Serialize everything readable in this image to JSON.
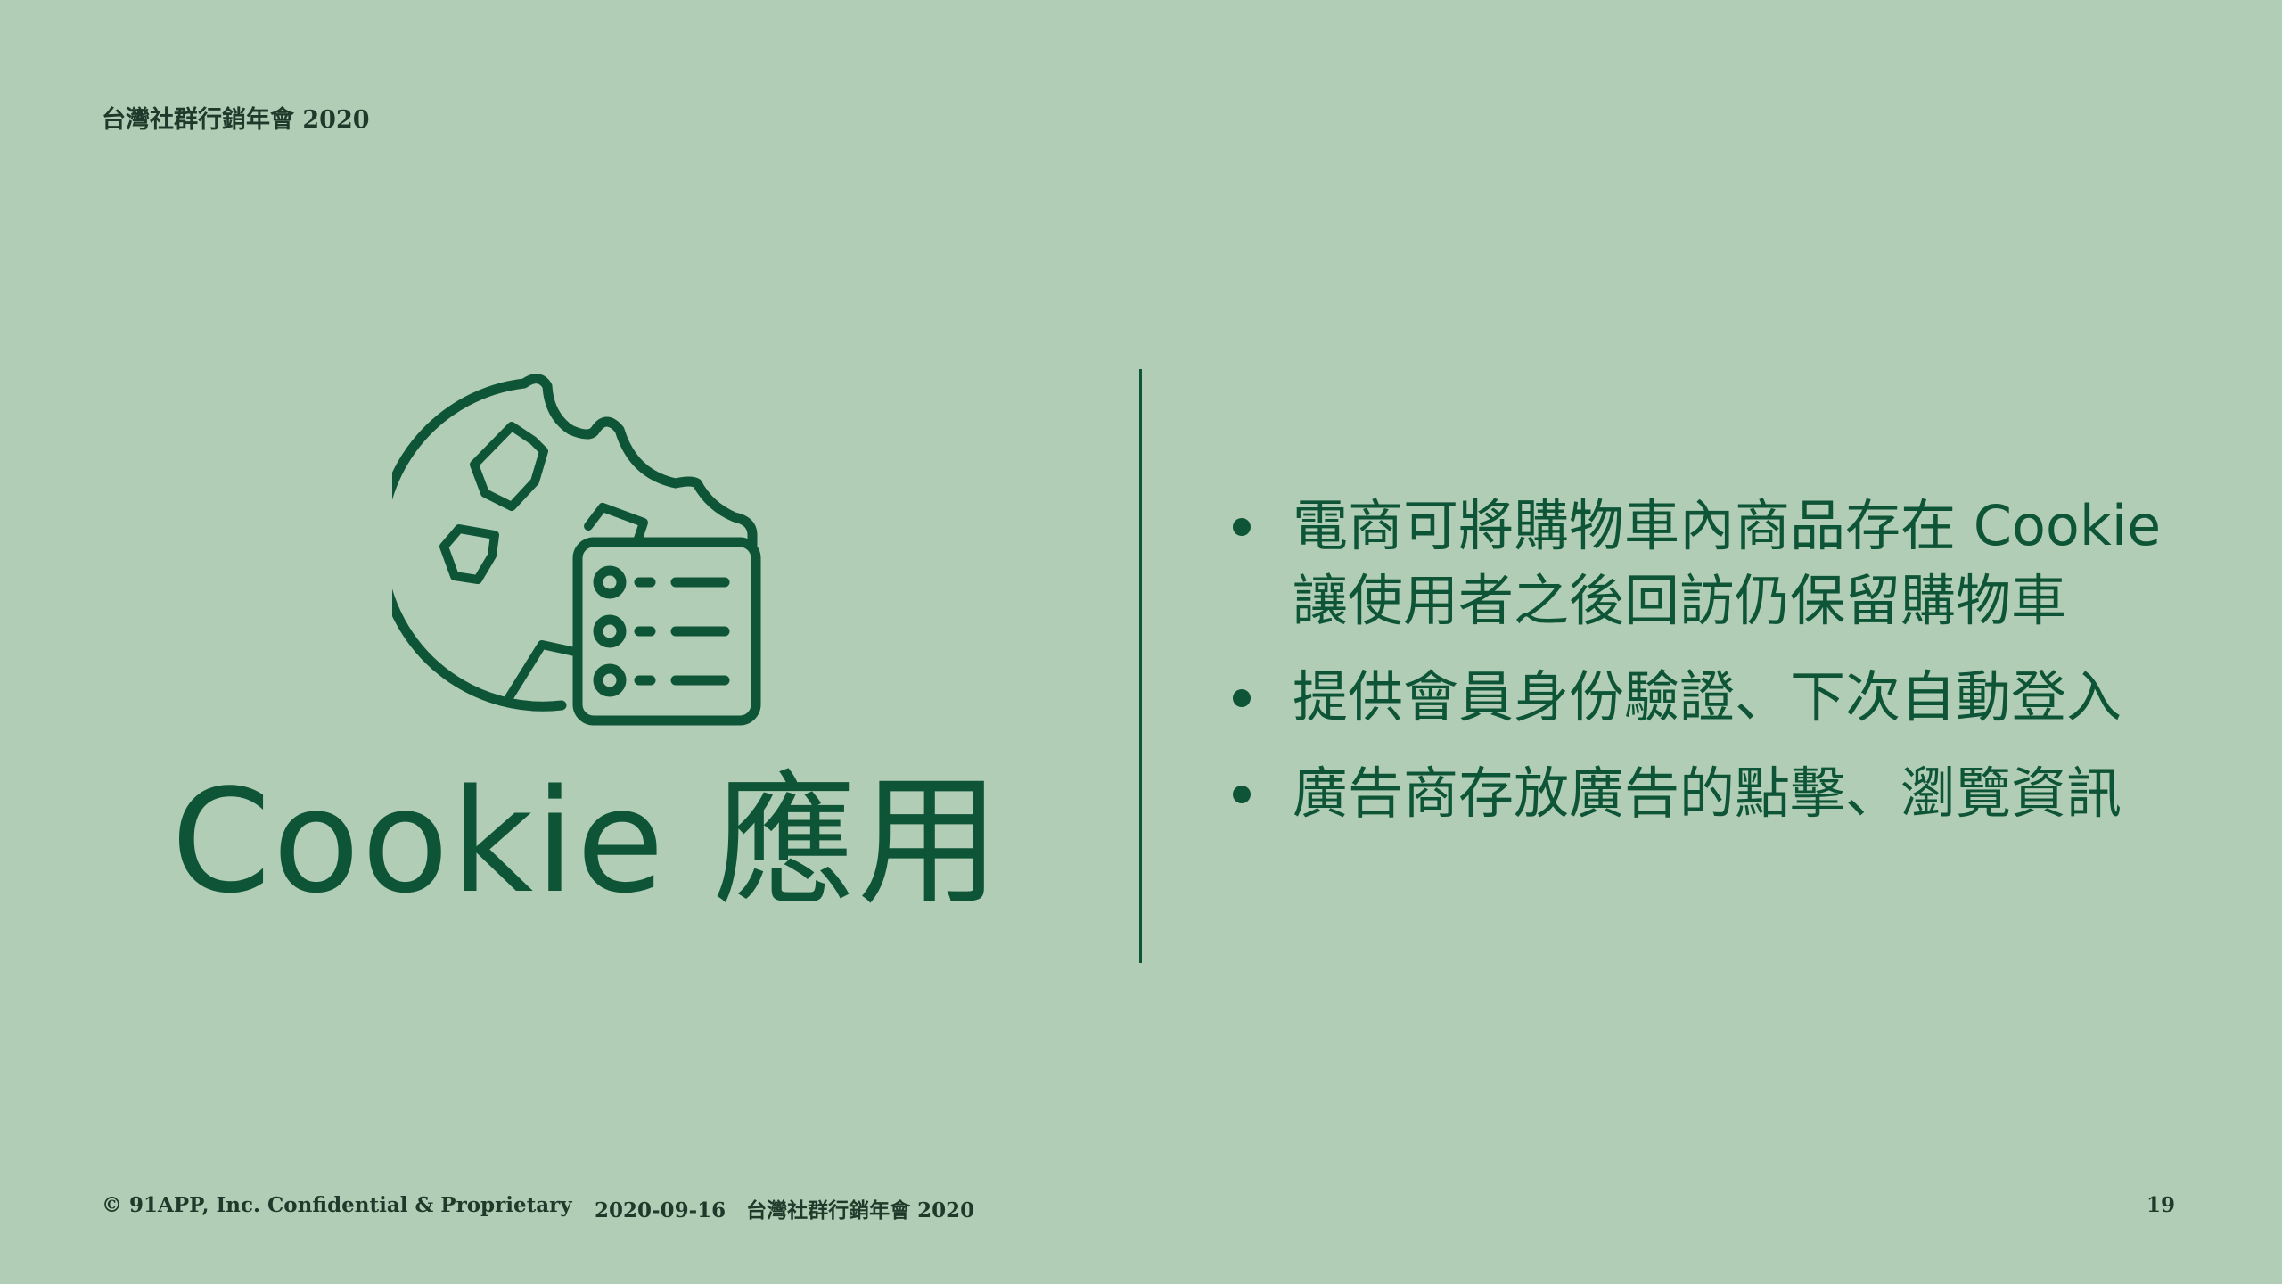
{
  "header": {
    "title": "台灣社群行銷年會 2020"
  },
  "hero": {
    "icon": "cookie-list-icon",
    "title": "Cookie 應用"
  },
  "bullets": [
    {
      "lines": [
        "電商可將購物車內商品存在 Cookie",
        "讓使用者之後回訪仍保留購物車"
      ]
    },
    {
      "lines": [
        "提供會員身份驗證、下次自動登入"
      ]
    },
    {
      "lines": [
        "廣告商存放廣告的點擊、瀏覽資訊"
      ]
    }
  ],
  "footer": {
    "copyright": "© 91APP, Inc. Confidential & Proprietary",
    "date_event": "2020-09-16　台灣社群行銷年會 2020",
    "page_number": "19"
  },
  "colors": {
    "background": "#b1cdb5",
    "accent": "#0e5537"
  }
}
